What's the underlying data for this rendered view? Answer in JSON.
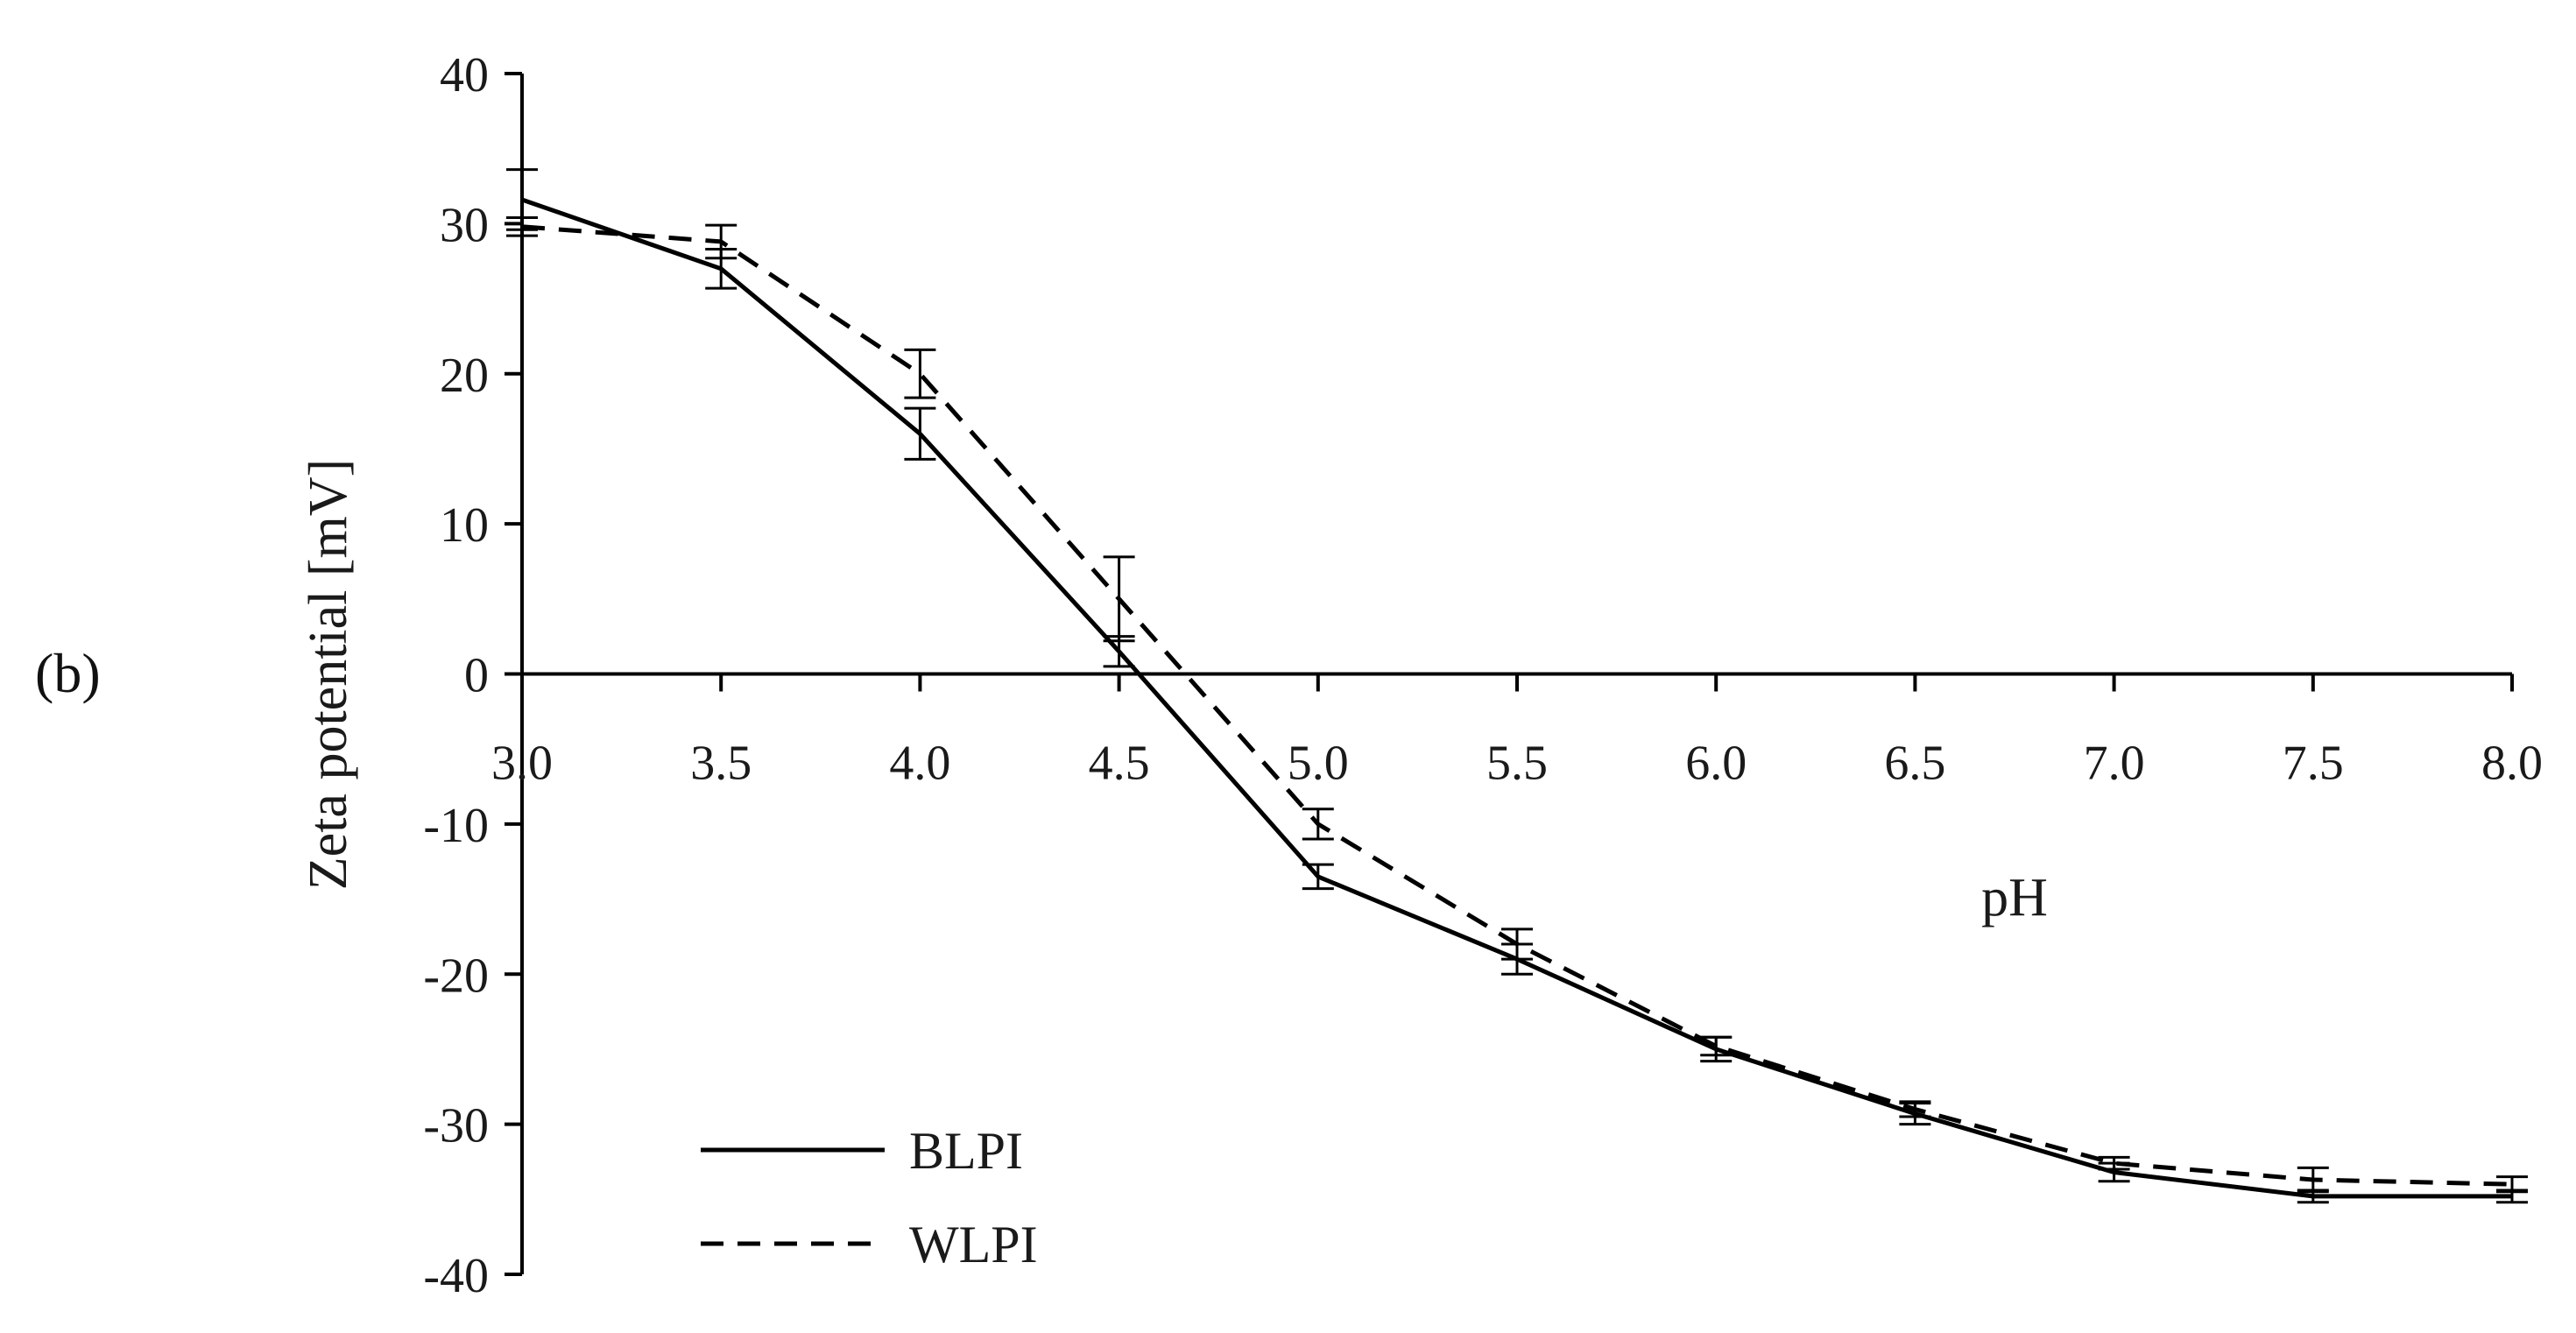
{
  "panel_label": "(b)",
  "chart_data": {
    "type": "line",
    "title": "",
    "xlabel": "pH",
    "ylabel": "Zeta potential [mV]",
    "x": [
      3.0,
      3.5,
      4.0,
      4.5,
      5.0,
      5.5,
      6.0,
      6.5,
      7.0,
      7.5,
      8.0
    ],
    "x_tick_labels": [
      "3.0",
      "3.5",
      "4.0",
      "4.5",
      "5.0",
      "5.5",
      "6.0",
      "6.5",
      "7.0",
      "7.5",
      "8.0"
    ],
    "y_ticks": [
      40,
      30,
      20,
      10,
      0,
      -10,
      -20,
      -30,
      -40
    ],
    "y_tick_labels": [
      "40",
      "30",
      "20",
      "10",
      "0",
      "-10",
      "-20",
      "-30",
      "-40"
    ],
    "xlim": [
      3.0,
      8.0
    ],
    "ylim": [
      -40,
      40
    ],
    "x_axis_crosses_at": 0,
    "grid": false,
    "legend_position": "bottom-left",
    "series": [
      {
        "name": "BLPI",
        "style": "solid",
        "color": "#000000",
        "values": [
          31.6,
          27.0,
          16.0,
          1.5,
          -13.5,
          -19.0,
          -25.0,
          -29.3,
          -33.2,
          -34.8,
          -34.8
        ],
        "errors": [
          2.0,
          1.3,
          1.7,
          1.0,
          0.8,
          1.0,
          0.8,
          0.7,
          0.6,
          0.4,
          0.4
        ]
      },
      {
        "name": "WLPI",
        "style": "dashed",
        "color": "#000000",
        "values": [
          29.8,
          28.8,
          20.0,
          5.0,
          -10.0,
          -18.0,
          -24.8,
          -29.0,
          -32.6,
          -33.7,
          -34.0
        ],
        "errors": [
          0.6,
          1.1,
          1.6,
          2.8,
          1.0,
          1.0,
          0.6,
          0.5,
          0.4,
          0.8,
          0.5
        ]
      }
    ]
  }
}
